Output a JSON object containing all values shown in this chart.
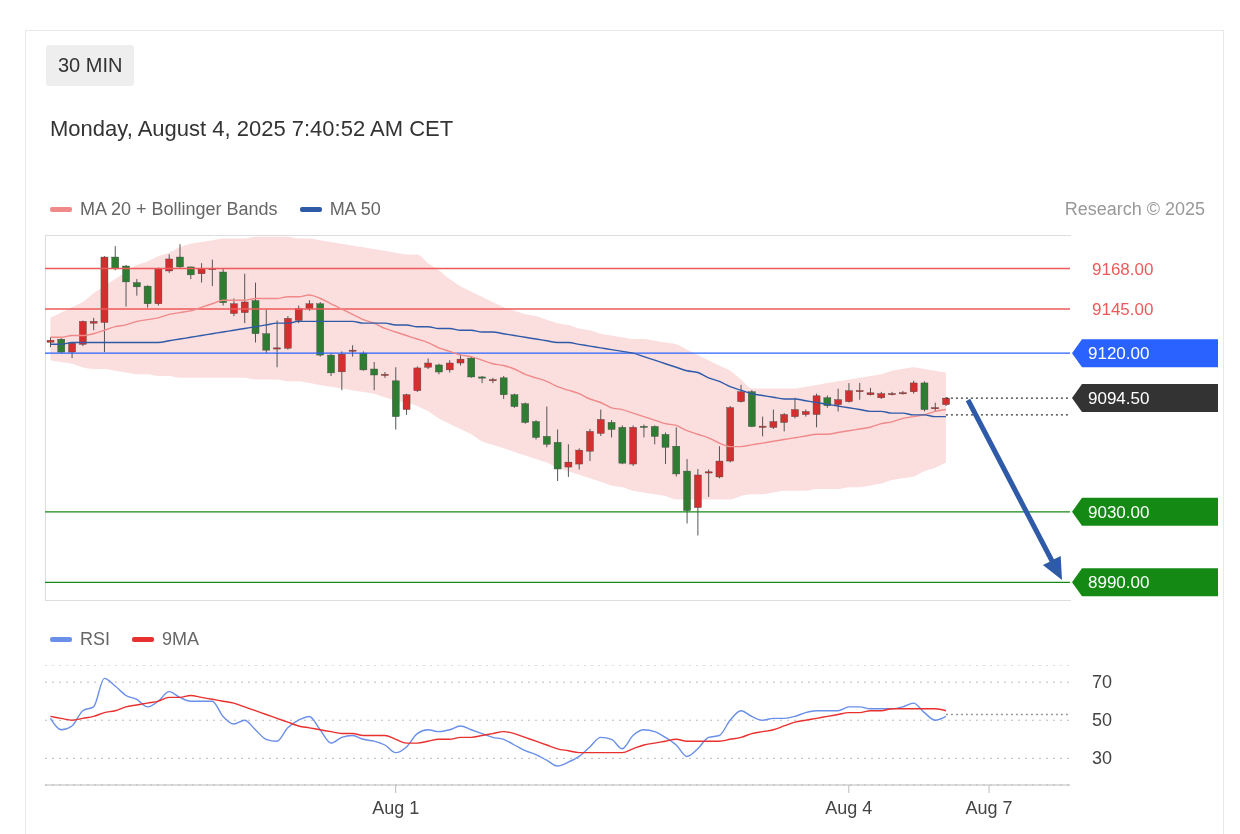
{
  "chart_data": [
    {
      "type": "candlestick",
      "title": "30 MIN",
      "subtitle": "Monday, August 4, 2025 7:40:52 AM CET",
      "annotations": [
        "Research © 2025"
      ],
      "categories": [
        null,
        null,
        null,
        null,
        null,
        null,
        null,
        null,
        null,
        null,
        null,
        null,
        null,
        null,
        null,
        null,
        null,
        null,
        null,
        null,
        null,
        null,
        null,
        null,
        null,
        null,
        null,
        null,
        null,
        null,
        null,
        null,
        null,
        null,
        null,
        null,
        null,
        null,
        null,
        null,
        null,
        null,
        null,
        null,
        null,
        null,
        null,
        null,
        null,
        null,
        null,
        null,
        null,
        null,
        null,
        null,
        null,
        null,
        null,
        null,
        null,
        null,
        null,
        null,
        null,
        null,
        null,
        null,
        null,
        null,
        null,
        null,
        null,
        null,
        null,
        null,
        null,
        null,
        null,
        null,
        null,
        null,
        null,
        null,
        null,
        null,
        null,
        null,
        null,
        null,
        null,
        null,
        null,
        null,
        null
      ],
      "ohlc": [
        [
          9126.2,
          9129,
          9123.4,
          9127.3
        ],
        [
          9127.9,
          9128.5,
          9120,
          9120.6
        ],
        [
          9120.6,
          9126,
          9117.2,
          9125.6
        ],
        [
          9125,
          9138.5,
          9124,
          9138
        ],
        [
          9137,
          9140,
          9133,
          9138
        ],
        [
          9137.4,
          9175,
          9120.6,
          9174.5
        ],
        [
          9174.5,
          9180.7,
          9167,
          9167.8
        ],
        [
          9169.4,
          9170,
          9146.4,
          9160.4
        ],
        [
          9160,
          9162,
          9152.6,
          9157.6
        ],
        [
          9158,
          9158.5,
          9145.8,
          9148
        ],
        [
          9148,
          9168.5,
          9147,
          9167.8
        ],
        [
          9166.6,
          9176,
          9165.5,
          9173.4
        ],
        [
          9174.5,
          9181.8,
          9168,
          9168.9
        ],
        [
          9168.9,
          9169,
          9162,
          9164.4
        ],
        [
          9165,
          9171,
          9160,
          9167.8
        ],
        [
          9167.5,
          9173,
          9158,
          9168
        ],
        [
          9166,
          9168.3,
          9147,
          9148.6
        ],
        [
          9142.5,
          9151,
          9141,
          9148
        ],
        [
          9143,
          9165,
          9137,
          9149
        ],
        [
          9149.8,
          9160,
          9126,
          9131
        ],
        [
          9131,
          9144.7,
          9120,
          9121.7
        ],
        [
          9122.8,
          9138.5,
          9112,
          9123
        ],
        [
          9122.8,
          9141,
          9122,
          9139.7
        ],
        [
          9138.5,
          9147,
          9137,
          9145.3
        ],
        [
          9145.3,
          9150,
          9144,
          9148
        ],
        [
          9148,
          9149,
          9118,
          9118.9
        ],
        [
          9118.9,
          9120,
          9107,
          9108.8
        ],
        [
          9109.4,
          9121,
          9099,
          9119.4
        ],
        [
          9121.2,
          9124.5,
          9118,
          9121.7
        ],
        [
          9120,
          9121,
          9110,
          9110.5
        ],
        [
          9111,
          9115,
          9099,
          9107.6
        ],
        [
          9107.6,
          9109.3,
          9106,
          9108
        ],
        [
          9104.3,
          9112,
          9076.7,
          9084
        ],
        [
          9088,
          9097,
          9085,
          9096.4
        ],
        [
          9098.7,
          9112.5,
          9098,
          9111.6
        ],
        [
          9112,
          9117,
          9111,
          9114.4
        ],
        [
          9113.3,
          9114,
          9108,
          9109.3
        ],
        [
          9110.5,
          9116,
          9109,
          9114.4
        ],
        [
          9114.4,
          9119,
          9113,
          9116.6
        ],
        [
          9117.2,
          9118,
          9106,
          9106.5
        ],
        [
          9106.5,
          9107,
          9103,
          9106
        ],
        [
          9104.8,
          9106,
          9103,
          9105
        ],
        [
          9106,
          9107,
          9094,
          9096.4
        ],
        [
          9096.4,
          9097,
          9089,
          9089.7
        ],
        [
          9091.3,
          9092,
          9080,
          9080.7
        ],
        [
          9081.2,
          9082,
          9071,
          9072.2
        ],
        [
          9072.8,
          9089.7,
          9066.6,
          9068.3
        ],
        [
          9069.4,
          9076.7,
          9047.5,
          9054.3
        ],
        [
          9055.4,
          9068.3,
          9049.8,
          9058.2
        ],
        [
          9057.1,
          9066,
          9054,
          9065
        ],
        [
          9064.4,
          9077,
          9058.8,
          9075.6
        ],
        [
          9074.5,
          9088,
          9073,
          9082.4
        ],
        [
          9080.7,
          9082,
          9072.2,
          9076.7
        ],
        [
          9077.9,
          9079,
          9057,
          9057.6
        ],
        [
          9057.1,
          9079,
          9056,
          9077.9
        ],
        [
          9078.5,
          9079.5,
          9072.2,
          9078.4
        ],
        [
          9078.4,
          9079,
          9068.3,
          9072.8
        ],
        [
          9073.9,
          9075,
          9057.1,
          9066.6
        ],
        [
          9067.2,
          9077.9,
          9050,
          9051.5
        ],
        [
          9053.1,
          9059.9,
          9023.4,
          9030.7
        ],
        [
          9032.4,
          9054.3,
          9016.6,
          9050.9
        ],
        [
          9052.5,
          9054,
          9038.5,
          9052.7
        ],
        [
          9049.8,
          9067.2,
          9049,
          9058.8
        ],
        [
          9058.8,
          9090,
          9058,
          9089.1
        ],
        [
          9092.5,
          9102,
          9092,
          9098.1
        ],
        [
          9098.1,
          9099,
          9078,
          9078.4
        ],
        [
          9078.4,
          9084,
          9072.8,
          9078.6
        ],
        [
          9077.9,
          9088,
          9077,
          9081.2
        ],
        [
          9080.7,
          9086,
          9075.6,
          9085.2
        ],
        [
          9084,
          9094.7,
          9083,
          9088
        ],
        [
          9085.2,
          9088,
          9084,
          9086.9
        ],
        [
          9085.2,
          9097,
          9077.9,
          9095.8
        ],
        [
          9094.7,
          9096,
          9089,
          9090.2
        ],
        [
          9090.8,
          9099.8,
          9086.9,
          9093.6
        ],
        [
          9092.5,
          9103,
          9092,
          9098.7
        ],
        [
          9098.7,
          9103.1,
          9093.6,
          9098.8
        ],
        [
          9096.4,
          9100.3,
          9096,
          9097.5
        ],
        [
          9094.7,
          9098,
          9094,
          9097
        ],
        [
          9097,
          9098,
          9096,
          9097.1
        ],
        [
          9097.5,
          9098.5,
          9096.5,
          9097.6
        ],
        [
          9098.1,
          9104.3,
          9097,
          9103.1
        ],
        [
          9103.1,
          9104,
          9087,
          9088
        ],
        [
          9089,
          9091.9,
          9086.9,
          9089.1
        ],
        [
          9090.8,
          9095,
          9090,
          9094.5
        ],
        null,
        null,
        null,
        null,
        null,
        null,
        null,
        null,
        null,
        null,
        null
      ],
      "colors": [
        "#d32f2f",
        "#2e7d32",
        "#d32f2f",
        "#d32f2f",
        "#d32f2f",
        "#d32f2f",
        "#2e7d32",
        "#2e7d32",
        "#2e7d32",
        "#2e7d32",
        "#d32f2f",
        "#d32f2f",
        "#2e7d32",
        "#2e7d32",
        "#d32f2f",
        "#d32f2f",
        "#2e7d32",
        "#d32f2f",
        "#d32f2f",
        "#2e7d32",
        "#2e7d32",
        "#d32f2f",
        "#d32f2f",
        "#d32f2f",
        "#d32f2f",
        "#2e7d32",
        "#2e7d32",
        "#d32f2f",
        "#d32f2f",
        "#2e7d32",
        "#2e7d32",
        "#d32f2f",
        "#2e7d32",
        "#d32f2f",
        "#d32f2f",
        "#d32f2f",
        "#2e7d32",
        "#d32f2f",
        "#d32f2f",
        "#2e7d32",
        "#2e7d32",
        "#d32f2f",
        "#2e7d32",
        "#2e7d32",
        "#2e7d32",
        "#2e7d32",
        "#2e7d32",
        "#2e7d32",
        "#d32f2f",
        "#d32f2f",
        "#d32f2f",
        "#d32f2f",
        "#2e7d32",
        "#2e7d32",
        "#d32f2f",
        "#2e7d32",
        "#2e7d32",
        "#2e7d32",
        "#2e7d32",
        "#2e7d32",
        "#d32f2f",
        "#d32f2f",
        "#d32f2f",
        "#d32f2f",
        "#d32f2f",
        "#2e7d32",
        "#d32f2f",
        "#d32f2f",
        "#d32f2f",
        "#d32f2f",
        "#d32f2f",
        "#d32f2f",
        "#2e7d32",
        "#d32f2f",
        "#d32f2f",
        "#d32f2f",
        "#d32f2f",
        "#d32f2f",
        "#d32f2f",
        "#d32f2f",
        "#d32f2f",
        "#2e7d32",
        "#d32f2f",
        "#d32f2f",
        null,
        null,
        null,
        null,
        null,
        null,
        null,
        null,
        null,
        null,
        null
      ],
      "ylim": [
        8980,
        9187
      ],
      "tick_labels": "y",
      "yticks": [
        {
          "value": 9168,
          "label": "9168.00"
        },
        {
          "value": 9145,
          "label": "9145.00"
        },
        {
          "value": 9120,
          "label": "9120.00"
        },
        {
          "value": 9094.5,
          "label": "9094.50"
        },
        {
          "value": 9030,
          "label": "9030.00"
        },
        {
          "value": 8990,
          "label": "8990.00"
        }
      ],
      "legend": "top left",
      "series": [
        {
          "type": "line",
          "name": "MA 20 + Bollinger Bands",
          "color": "#f08a8a",
          "values": [
            9129,
            9129,
            9130,
            9130,
            9131,
            9133,
            9135,
            9136,
            9138,
            9139,
            9140,
            9142,
            9143,
            9144,
            9146,
            9148,
            9150,
            9150,
            9150,
            9151,
            9151,
            9151,
            9152,
            9152,
            9153,
            9151,
            9148,
            9145,
            9142,
            9139,
            9137,
            9134,
            9132,
            9130,
            9128,
            9126,
            9123,
            9121,
            9119,
            9118,
            9116,
            9114,
            9113,
            9111,
            9108,
            9106,
            9104,
            9101,
            9099,
            9097,
            9094,
            9092,
            9089,
            9088,
            9086,
            9084,
            9082,
            9080,
            9079,
            9076,
            9074,
            9072,
            9069,
            9067,
            9067,
            9068,
            9069,
            9070,
            9071,
            9072,
            9073,
            9074,
            9074,
            9075,
            9076,
            9077,
            9078,
            9080,
            9081,
            9083,
            9084,
            9085,
            9087,
            9088,
            null,
            null,
            null,
            null,
            null,
            null,
            null,
            null,
            null,
            null,
            null
          ],
          "upper": [
            9140,
            9143,
            9146,
            9149,
            9154,
            9158,
            9162,
            9166,
            9170,
            9172,
            9175,
            9177,
            9180,
            9182,
            9183,
            9184,
            9185,
            9185,
            9185,
            9186,
            9186,
            9186,
            9186,
            9185,
            9185,
            9184,
            9183,
            9182,
            9181,
            9180,
            9179,
            9178,
            9177,
            9176,
            9176,
            9171,
            9167,
            9162,
            9158,
            9155,
            9152,
            9149,
            9146,
            9144,
            9142,
            9141,
            9139,
            9137,
            9136,
            9134,
            9133,
            9131,
            9130,
            9129,
            9128,
            9128,
            9127,
            9126,
            9125,
            9122,
            9119,
            9116,
            9113,
            9110,
            9105,
            9100,
            9100,
            9100,
            9100,
            9100,
            9101,
            9102,
            9103,
            9104,
            9105,
            9106,
            9107,
            9108,
            9110,
            9111,
            9112,
            9111,
            9110,
            9109,
            null,
            null,
            null,
            null,
            null,
            null,
            null,
            null,
            null,
            null,
            null
          ],
          "lower": [
            9116,
            9115,
            9114,
            9112,
            9111,
            9111,
            9110,
            9109,
            9108,
            9108,
            9107,
            9107,
            9106,
            9106,
            9106,
            9106,
            9106,
            9106,
            9106,
            9105,
            9105,
            9105,
            9104,
            9104,
            9103,
            9102,
            9101,
            9100,
            9099,
            9098,
            9097,
            9095,
            9093,
            9092,
            9090,
            9087,
            9083,
            9080,
            9077,
            9074,
            9070,
            9068,
            9066,
            9064,
            9062,
            9060,
            9058,
            9055,
            9053,
            9051,
            9049,
            9047,
            9045,
            9044,
            9042,
            9041,
            9040,
            9039,
            9037,
            9037,
            9037,
            9037,
            9037,
            9037,
            9039,
            9040,
            9040,
            9041,
            9042,
            9042,
            9042,
            9043,
            9043,
            9043,
            9044,
            9044,
            9045,
            9046,
            9048,
            9049,
            9050,
            9053,
            9055,
            9058,
            null,
            null,
            null,
            null,
            null,
            null,
            null,
            null,
            null,
            null,
            null
          ]
        },
        {
          "type": "line",
          "name": "MA 50",
          "color": "#2f5aa8",
          "values": [
            9125,
            9125,
            9126,
            9126,
            9126,
            9126,
            9126,
            9126,
            9126,
            9126,
            9126,
            9127,
            9128,
            9129,
            9130,
            9131,
            9132,
            9133,
            9134,
            9135,
            9136,
            9137,
            9137,
            9138,
            9138,
            9138,
            9138,
            9138,
            9138,
            9137,
            9137,
            9137,
            9136,
            9136,
            9135,
            9135,
            9134,
            9134,
            9133,
            9133,
            9132,
            9132,
            9131,
            9130,
            9129,
            9128,
            9127,
            9126,
            9126,
            9125,
            9124,
            9123,
            9122,
            9121,
            9120,
            9118,
            9116,
            9114,
            9112,
            9110,
            9109,
            9106,
            9104,
            9101,
            9099,
            9097,
            9096,
            9095,
            9094,
            9094,
            9093,
            9092,
            9091,
            9090,
            9089,
            9088,
            9087,
            9087,
            9086,
            9086,
            9085,
            9085,
            9084,
            9084,
            null,
            null,
            null,
            null,
            null,
            null,
            null,
            null,
            null,
            null,
            null
          ]
        }
      ],
      "ref_lines": [
        {
          "axis": "y",
          "value": 9168,
          "color": "#ee5a5a"
        },
        {
          "axis": "y",
          "value": 9145,
          "color": "#ee5a5a"
        },
        {
          "axis": "y",
          "value": 9120,
          "color": "#2962ff"
        },
        {
          "axis": "y",
          "value": 9094.5,
          "color": "#333333",
          "line_style": "dotted"
        },
        {
          "axis": "y",
          "value": 9085,
          "color": "#333333",
          "line_style": "dotted"
        },
        {
          "axis": "y",
          "value": 9030,
          "color": "#148a14"
        },
        {
          "axis": "y",
          "value": 8990,
          "color": "#148a14"
        }
      ]
    },
    {
      "type": "line",
      "categories": [
        null,
        null,
        null,
        null,
        null,
        null,
        null,
        null,
        null,
        null,
        null,
        null,
        null,
        null,
        null,
        null,
        null,
        null,
        null,
        null,
        null,
        null,
        null,
        null,
        null,
        null,
        null,
        null,
        null,
        null,
        null,
        null,
        "Aug 1",
        null,
        null,
        null,
        null,
        null,
        null,
        null,
        null,
        null,
        null,
        null,
        null,
        null,
        null,
        null,
        null,
        null,
        null,
        null,
        null,
        null,
        null,
        null,
        null,
        null,
        null,
        null,
        null,
        null,
        null,
        null,
        null,
        null,
        null,
        null,
        null,
        null,
        null,
        null,
        null,
        null,
        "Aug 4",
        null,
        null,
        null,
        null,
        null,
        null,
        null,
        null,
        null,
        null,
        null,
        null,
        "Aug 7",
        null,
        null,
        null,
        null,
        null,
        null,
        null
      ],
      "ylim": [
        16,
        79
      ],
      "yticks": [
        30,
        50,
        70
      ],
      "grid": "y",
      "legend": "top left",
      "series": [
        {
          "name": "RSI",
          "color": "#6a8fe8",
          "values": [
            51,
            45,
            47,
            55,
            57,
            72,
            68,
            63,
            61,
            57,
            60,
            65,
            62,
            60,
            60,
            60,
            52,
            48,
            50,
            45,
            40,
            39,
            46,
            50,
            52,
            45,
            38,
            41,
            42,
            40,
            39,
            37,
            33,
            36,
            43,
            45,
            44,
            45,
            47,
            45,
            43,
            41,
            40,
            37,
            34,
            32,
            29,
            26,
            28,
            31,
            36,
            41,
            40,
            35,
            42,
            45,
            44,
            41,
            37,
            31,
            35,
            41,
            42,
            50,
            55,
            52,
            50,
            51,
            51,
            52,
            54,
            55,
            55,
            55,
            57,
            57,
            56,
            56,
            56,
            57,
            59,
            54,
            50,
            52,
            null,
            null,
            null,
            null,
            null,
            null,
            null,
            null,
            null,
            null,
            null
          ]
        },
        {
          "name": "9MA",
          "color": "#e8302e",
          "values": [
            52,
            51,
            50,
            51,
            52,
            54,
            55,
            57,
            58,
            59,
            60,
            62,
            62,
            63,
            62,
            61,
            60,
            59,
            57,
            55,
            53,
            51,
            49,
            47,
            46,
            45,
            44,
            43,
            43,
            42,
            42,
            42,
            40,
            38,
            38,
            39,
            40,
            40,
            41,
            41,
            42,
            43,
            44,
            43,
            41,
            39,
            37,
            35,
            34,
            33,
            33,
            33,
            33,
            33,
            35,
            37,
            38,
            39,
            40,
            39,
            39,
            39,
            39,
            40,
            41,
            43,
            44,
            45,
            47,
            49,
            50,
            51,
            52,
            53,
            54,
            54,
            55,
            55,
            56,
            56,
            56,
            56,
            56,
            55,
            null,
            null,
            null,
            null,
            null,
            null,
            null,
            null,
            null,
            null,
            null
          ]
        }
      ],
      "ref_lines": [
        {
          "axis": "y",
          "value": 53,
          "color": "#999999",
          "line_style": "dotted"
        }
      ]
    }
  ]
}
